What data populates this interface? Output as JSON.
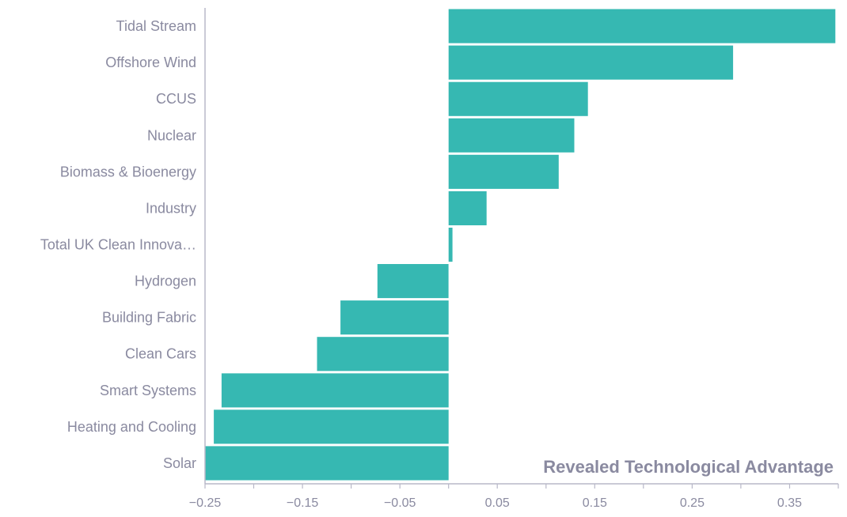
{
  "chart_data": {
    "type": "bar",
    "orientation": "horizontal",
    "title": "",
    "xlabel": "Revealed Technological Advantage",
    "ylabel": "",
    "xlim": [
      -0.25,
      0.4
    ],
    "x_ticks": [
      -0.25,
      -0.15,
      -0.05,
      0.05,
      0.15,
      0.25,
      0.35
    ],
    "x_tick_labels": [
      "−0.25",
      "−0.15",
      "−0.05",
      "0.05",
      "0.15",
      "0.25",
      "0.35"
    ],
    "categories": [
      "Tidal Stream",
      "Offshore Wind",
      "CCUS",
      "Nuclear",
      "Biomass & Bioenergy",
      "Industry",
      "Total UK Clean Innova…",
      "Hydrogen",
      "Building Fabric",
      "Clean Cars",
      "Smart Systems",
      "Heating and Cooling",
      "Solar"
    ],
    "values": [
      0.397,
      0.292,
      0.143,
      0.129,
      0.113,
      0.039,
      0.004,
      -0.073,
      -0.111,
      -0.135,
      -0.233,
      -0.241,
      -0.25
    ],
    "grid": false,
    "legend": "none",
    "bar_color": "#36b8b2",
    "axis_color": "#b8b8c8",
    "text_color": "#8a8aa0"
  }
}
